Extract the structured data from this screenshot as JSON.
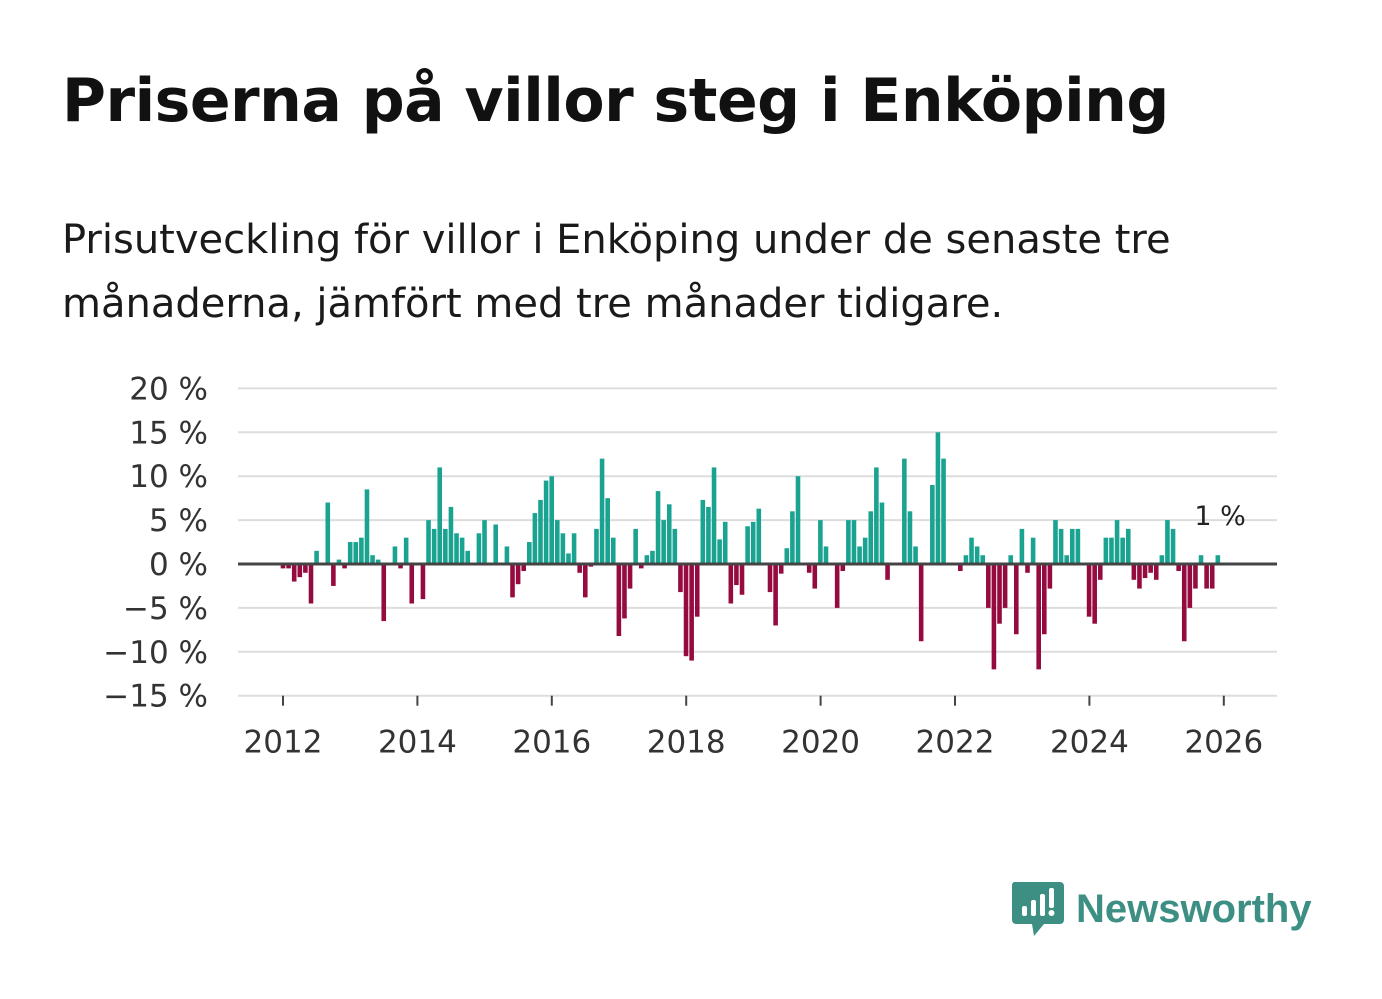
{
  "title": "Priserna på villor steg i Enköping",
  "subtitle": "Prisutveckling för villor i Enköping under de senaste tre månaderna, jämfört med tre månader tidigare.",
  "brand": {
    "name": "Newsworthy",
    "icon": "newsworthy-logo-icon",
    "color": "#3d8f84"
  },
  "colors": {
    "positive": "#1aa391",
    "negative": "#950a3f",
    "grid": "#dddddd",
    "zero_line": "#444444"
  },
  "chart_data": {
    "type": "bar",
    "title": "Priserna på villor steg i Enköping",
    "xlabel": "",
    "ylabel": "",
    "ylim": [
      -15,
      20
    ],
    "y_ticks": [
      20,
      15,
      10,
      5,
      0,
      -5,
      -10,
      -15
    ],
    "y_tick_labels": [
      "20 %",
      "15 %",
      "10 %",
      "5 %",
      "0 %",
      "−5 %",
      "−10 %",
      "−15 %"
    ],
    "x_ticks": [
      2012,
      2014,
      2016,
      2018,
      2020,
      2022,
      2024,
      2026
    ],
    "x_tick_labels": [
      "2012",
      "2014",
      "2016",
      "2018",
      "2020",
      "2022",
      "2024",
      "2026"
    ],
    "x_start": 2012.0,
    "step": 0.0833,
    "values": [
      -0.5,
      -0.5,
      -2,
      -1.5,
      -1,
      -4.5,
      1.5,
      0,
      7,
      -2.5,
      0.5,
      -0.5,
      2.5,
      2.5,
      3,
      8.5,
      1,
      0.5,
      -6.5,
      0,
      2,
      -0.5,
      3,
      -4.5,
      0,
      -4,
      5,
      4,
      11,
      4,
      6.5,
      3.5,
      3,
      1.5,
      0,
      3.5,
      5,
      0,
      4.5,
      0,
      2,
      -3.8,
      -2.3,
      -0.8,
      2.5,
      5.8,
      7.3,
      9.5,
      10,
      5,
      3.5,
      1.2,
      3.5,
      -1,
      -3.8,
      -0.3,
      4,
      12,
      7.5,
      3,
      -8.2,
      -6.2,
      -2.8,
      4,
      -0.5,
      1,
      1.5,
      8.3,
      5,
      6.8,
      4,
      -3.2,
      -10.5,
      -11,
      -6,
      7.3,
      6.5,
      11,
      2.8,
      4.8,
      -4.5,
      -2.4,
      -3.5,
      4.3,
      4.8,
      6.3,
      0,
      -3.2,
      -7,
      -1.1,
      1.8,
      6,
      10,
      0,
      -1,
      -2.8,
      5,
      2,
      0,
      -5,
      -0.8,
      5,
      5,
      2,
      3,
      6,
      11,
      7,
      -1.8,
      0,
      0,
      12,
      6,
      2,
      -8.8,
      0,
      9,
      15,
      12,
      0,
      0,
      -0.8,
      1,
      3,
      2,
      1,
      -5,
      -12,
      -6.8,
      -5,
      1,
      -8,
      4,
      -1,
      3,
      -12,
      -8,
      -2.8,
      5,
      4,
      1,
      4,
      4,
      0,
      -6,
      -6.8,
      -1.8,
      3,
      3,
      5,
      3,
      4,
      -1.8,
      -2.8,
      -1.6,
      -1,
      -1.8,
      1,
      5,
      4,
      -0.8,
      -8.8,
      -5,
      -2.8,
      1,
      -2.8,
      -2.8,
      1
    ],
    "last_value_label": "1 %"
  }
}
